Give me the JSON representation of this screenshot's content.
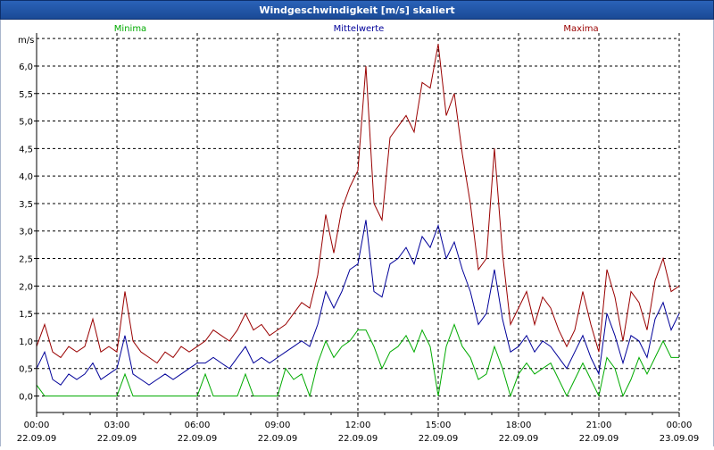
{
  "window": {
    "title": "Windgeschwindigkeit [m/s] skaliert"
  },
  "legend": [
    {
      "name": "Minima",
      "color": "#00aa00"
    },
    {
      "name": "Mittelwerte",
      "color": "#000099"
    },
    {
      "name": "Maxima",
      "color": "#990000"
    }
  ],
  "chart_data": {
    "type": "line",
    "title": "Windgeschwindigkeit [m/s] skaliert",
    "ylabel": "m/s",
    "ylim": [
      -0.3,
      6.6
    ],
    "y_ticks": [
      "0,0",
      "0,5",
      "1,0",
      "1,5",
      "2,0",
      "2,5",
      "3,0",
      "3,5",
      "4,0",
      "4,5",
      "5,0",
      "5,5",
      "6,0"
    ],
    "x_unit": "hours since 22.09.09 00:00",
    "xlim": [
      0,
      24
    ],
    "x_ticks": [
      {
        "time": "00:00",
        "date": "22.09.09"
      },
      {
        "time": "03:00",
        "date": "22.09.09"
      },
      {
        "time": "06:00",
        "date": "22.09.09"
      },
      {
        "time": "09:00",
        "date": "22.09.09"
      },
      {
        "time": "12:00",
        "date": "22.09.09"
      },
      {
        "time": "15:00",
        "date": "22.09.09"
      },
      {
        "time": "18:00",
        "date": "22.09.09"
      },
      {
        "time": "21:00",
        "date": "22.09.09"
      },
      {
        "time": "00:00",
        "date": "23.09.09"
      }
    ],
    "grid": true,
    "legend_position": "top",
    "series": [
      {
        "name": "Maxima",
        "color": "#990000",
        "x": [
          0,
          0.3,
          0.6,
          0.9,
          1.2,
          1.5,
          1.8,
          2.1,
          2.4,
          2.7,
          3.0,
          3.3,
          3.6,
          3.9,
          4.2,
          4.5,
          4.8,
          5.1,
          5.4,
          5.7,
          6.0,
          6.3,
          6.6,
          6.9,
          7.2,
          7.5,
          7.8,
          8.1,
          8.4,
          8.7,
          9.0,
          9.3,
          9.6,
          9.9,
          10.2,
          10.5,
          10.8,
          11.1,
          11.4,
          11.7,
          12.0,
          12.3,
          12.6,
          12.9,
          13.2,
          13.5,
          13.8,
          14.1,
          14.4,
          14.7,
          15.0,
          15.3,
          15.6,
          15.9,
          16.2,
          16.5,
          16.8,
          17.1,
          17.4,
          17.7,
          18.0,
          18.3,
          18.6,
          18.9,
          19.2,
          19.5,
          19.8,
          20.1,
          20.4,
          20.7,
          21.0,
          21.3,
          21.6,
          21.9,
          22.2,
          22.5,
          22.8,
          23.1,
          23.4,
          23.7,
          24.0
        ],
        "values": [
          0.9,
          1.3,
          0.8,
          0.7,
          0.9,
          0.8,
          0.9,
          1.4,
          0.8,
          0.9,
          0.8,
          1.9,
          1.0,
          0.8,
          0.7,
          0.6,
          0.8,
          0.7,
          0.9,
          0.8,
          0.9,
          1.0,
          1.2,
          1.1,
          1.0,
          1.2,
          1.5,
          1.2,
          1.3,
          1.1,
          1.2,
          1.3,
          1.5,
          1.7,
          1.6,
          2.2,
          3.3,
          2.6,
          3.4,
          3.8,
          4.1,
          6.0,
          3.5,
          3.2,
          4.7,
          4.9,
          5.1,
          4.8,
          5.7,
          5.6,
          6.4,
          5.1,
          5.5,
          4.4,
          3.5,
          2.3,
          2.5,
          4.5,
          2.6,
          1.3,
          1.6,
          1.9,
          1.3,
          1.8,
          1.6,
          1.2,
          0.9,
          1.2,
          1.9,
          1.3,
          0.8,
          2.3,
          1.8,
          1.0,
          1.9,
          1.7,
          1.2,
          2.1,
          2.5,
          1.9,
          2.0
        ]
      },
      {
        "name": "Mittelwerte",
        "color": "#000099",
        "x": [
          0,
          0.3,
          0.6,
          0.9,
          1.2,
          1.5,
          1.8,
          2.1,
          2.4,
          2.7,
          3.0,
          3.3,
          3.6,
          3.9,
          4.2,
          4.5,
          4.8,
          5.1,
          5.4,
          5.7,
          6.0,
          6.3,
          6.6,
          6.9,
          7.2,
          7.5,
          7.8,
          8.1,
          8.4,
          8.7,
          9.0,
          9.3,
          9.6,
          9.9,
          10.2,
          10.5,
          10.8,
          11.1,
          11.4,
          11.7,
          12.0,
          12.3,
          12.6,
          12.9,
          13.2,
          13.5,
          13.8,
          14.1,
          14.4,
          14.7,
          15.0,
          15.3,
          15.6,
          15.9,
          16.2,
          16.5,
          16.8,
          17.1,
          17.4,
          17.7,
          18.0,
          18.3,
          18.6,
          18.9,
          19.2,
          19.5,
          19.8,
          20.1,
          20.4,
          20.7,
          21.0,
          21.3,
          21.6,
          21.9,
          22.2,
          22.5,
          22.8,
          23.1,
          23.4,
          23.7,
          24.0
        ],
        "values": [
          0.5,
          0.8,
          0.3,
          0.2,
          0.4,
          0.3,
          0.4,
          0.6,
          0.3,
          0.4,
          0.5,
          1.1,
          0.4,
          0.3,
          0.2,
          0.3,
          0.4,
          0.3,
          0.4,
          0.5,
          0.6,
          0.6,
          0.7,
          0.6,
          0.5,
          0.7,
          0.9,
          0.6,
          0.7,
          0.6,
          0.7,
          0.8,
          0.9,
          1.0,
          0.9,
          1.3,
          1.9,
          1.6,
          1.9,
          2.3,
          2.4,
          3.2,
          1.9,
          1.8,
          2.4,
          2.5,
          2.7,
          2.4,
          2.9,
          2.7,
          3.1,
          2.5,
          2.8,
          2.3,
          1.9,
          1.3,
          1.5,
          2.3,
          1.4,
          0.8,
          0.9,
          1.1,
          0.8,
          1.0,
          0.9,
          0.7,
          0.5,
          0.8,
          1.1,
          0.7,
          0.4,
          1.5,
          1.1,
          0.6,
          1.1,
          1.0,
          0.7,
          1.4,
          1.7,
          1.2,
          1.5
        ]
      },
      {
        "name": "Minima",
        "color": "#00aa00",
        "x": [
          0,
          0.3,
          0.6,
          0.9,
          1.2,
          1.5,
          1.8,
          2.1,
          2.4,
          2.7,
          3.0,
          3.3,
          3.6,
          3.9,
          4.2,
          4.5,
          4.8,
          5.1,
          5.4,
          5.7,
          6.0,
          6.3,
          6.6,
          6.9,
          7.2,
          7.5,
          7.8,
          8.1,
          8.4,
          8.7,
          9.0,
          9.3,
          9.6,
          9.9,
          10.2,
          10.5,
          10.8,
          11.1,
          11.4,
          11.7,
          12.0,
          12.3,
          12.6,
          12.9,
          13.2,
          13.5,
          13.8,
          14.1,
          14.4,
          14.7,
          15.0,
          15.3,
          15.6,
          15.9,
          16.2,
          16.5,
          16.8,
          17.1,
          17.4,
          17.7,
          18.0,
          18.3,
          18.6,
          18.9,
          19.2,
          19.5,
          19.8,
          20.1,
          20.4,
          20.7,
          21.0,
          21.3,
          21.6,
          21.9,
          22.2,
          22.5,
          22.8,
          23.1,
          23.4,
          23.7,
          24.0
        ],
        "values": [
          0.2,
          0.0,
          0.0,
          0.0,
          0.0,
          0.0,
          0.0,
          0.0,
          0.0,
          0.0,
          0.0,
          0.4,
          0.0,
          0.0,
          0.0,
          0.0,
          0.0,
          0.0,
          0.0,
          0.0,
          0.0,
          0.4,
          0.0,
          0.0,
          0.0,
          0.0,
          0.4,
          0.0,
          0.0,
          0.0,
          0.0,
          0.5,
          0.3,
          0.4,
          0.0,
          0.6,
          1.0,
          0.7,
          0.9,
          1.0,
          1.2,
          1.2,
          0.9,
          0.5,
          0.8,
          0.9,
          1.1,
          0.8,
          1.2,
          0.9,
          0.0,
          0.9,
          1.3,
          0.9,
          0.7,
          0.3,
          0.4,
          0.9,
          0.5,
          0.0,
          0.4,
          0.6,
          0.4,
          0.5,
          0.6,
          0.3,
          0.0,
          0.3,
          0.6,
          0.3,
          0.0,
          0.7,
          0.5,
          0.0,
          0.3,
          0.7,
          0.4,
          0.7,
          1.0,
          0.7,
          0.7
        ]
      }
    ]
  }
}
